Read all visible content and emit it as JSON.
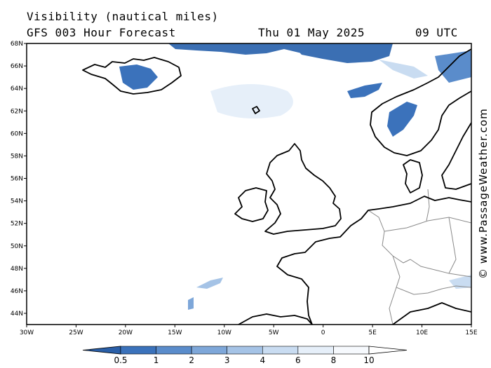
{
  "header": {
    "title": "Visibility (nautical miles)",
    "subtitle": "GFS 003 Hour Forecast",
    "date": "Thu 01 May 2025",
    "time": "09 UTC"
  },
  "watermark": "© www.PassageWeather.com",
  "axes": {
    "lat_labels": [
      "68N",
      "66N",
      "64N",
      "62N",
      "60N",
      "58N",
      "56N",
      "54N",
      "52N",
      "50N",
      "48N",
      "46N",
      "44N"
    ],
    "lon_labels": [
      "30W",
      "25W",
      "20W",
      "15W",
      "10W",
      "5W",
      "0",
      "5E",
      "10E",
      "15E"
    ]
  },
  "colorbar": {
    "labels": [
      "0.5",
      "1",
      "2",
      "3",
      "4",
      "6",
      "8",
      "10"
    ],
    "colors": [
      "#2a5fa8",
      "#3b72bb",
      "#5a8ccb",
      "#7ea7d9",
      "#a5c3e6",
      "#c9dcf1",
      "#e6eff9",
      "#f6f9fd",
      "#ffffff"
    ]
  },
  "colors": {
    "coast": "#000000",
    "border": "#8a8a8a",
    "low_vis": "#3b6fb3"
  }
}
